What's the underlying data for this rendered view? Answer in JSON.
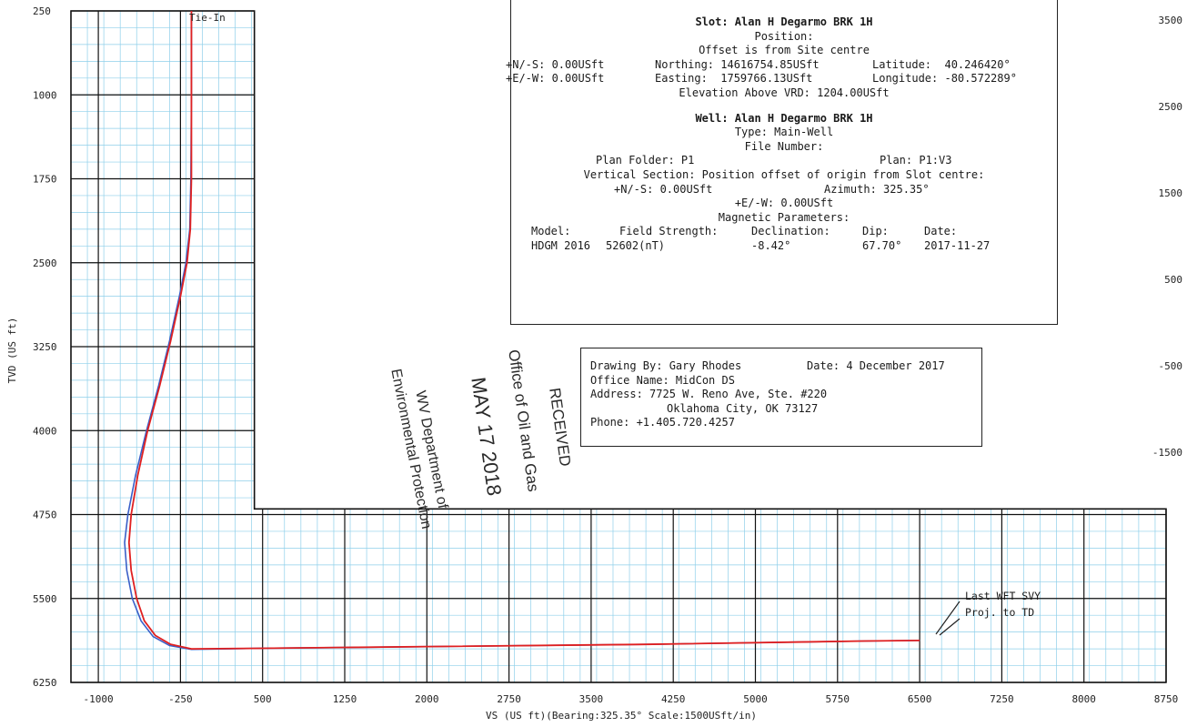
{
  "chart_data": {
    "type": "line",
    "xlabel": "VS (US ft)(Bearing:325.35° Scale:1500USft/in)",
    "ylabel": "TVD (US ft)",
    "xlim": [
      -1250,
      8750
    ],
    "ylim": [
      250,
      6250
    ],
    "y_inverted": true,
    "grid": true,
    "x_ticks": [
      "-1000",
      "-250",
      "500",
      "1250",
      "2000",
      "2750",
      "3500",
      "4250",
      "5000",
      "5750",
      "6500",
      "7250",
      "8000",
      "8750"
    ],
    "y_ticks": [
      "250",
      "1000",
      "1750",
      "2500",
      "3250",
      "4000",
      "4750",
      "5500",
      "6250"
    ],
    "right_ticks": [
      {
        "label": "3500",
        "tvd": 330
      },
      {
        "label": "2500",
        "tvd": 1105
      },
      {
        "label": "1500",
        "tvd": 1875
      },
      {
        "label": "500",
        "tvd": 2650
      },
      {
        "label": "-500",
        "tvd": 3420
      },
      {
        "label": "-1500",
        "tvd": 4195
      }
    ],
    "series": [
      {
        "color": "#3a5fc8",
        "x": [
          -150,
          -150,
          -155,
          -165,
          -200,
          -260,
          -350,
          -450,
          -560,
          -660,
          -730,
          -760,
          -740,
          -690,
          -610,
          -500,
          -350,
          -150,
          500,
          2000,
          4000,
          6000,
          6500
        ],
        "y": [
          250,
          1000,
          1750,
          2200,
          2500,
          2800,
          3200,
          3600,
          4000,
          4400,
          4750,
          5000,
          5250,
          5500,
          5700,
          5840,
          5920,
          5955,
          5945,
          5930,
          5910,
          5880,
          5875
        ]
      },
      {
        "color": "#e02020",
        "x": [
          -150,
          -150,
          -150,
          -160,
          -190,
          -250,
          -340,
          -440,
          -550,
          -640,
          -700,
          -720,
          -700,
          -650,
          -580,
          -480,
          -340,
          -150,
          500,
          2000,
          4000,
          6000,
          6500
        ],
        "y": [
          250,
          1000,
          1750,
          2200,
          2500,
          2800,
          3200,
          3600,
          4000,
          4400,
          4750,
          5000,
          5250,
          5500,
          5700,
          5830,
          5910,
          5950,
          5945,
          5930,
          5910,
          5880,
          5875
        ]
      }
    ],
    "annotations": [
      "Tie-In",
      "Last WFT SVY",
      "Proj. to TD"
    ]
  },
  "info": {
    "slot_title": "Slot: Alan H Degarmo BRK 1H",
    "position": "Position:",
    "offset_note": "Offset is from Site centre",
    "ns_col": "+N/-S: 0.00USft",
    "northing": "Northing: 14616754.85USft",
    "latitude": "Latitude:  40.246420°",
    "ew_col": "+E/-W: 0.00USft",
    "easting": "Easting:  1759766.13USft",
    "longitude": "Longitude: -80.572289°",
    "elevation": "Elevation Above VRD: 1204.00USft",
    "well_title": "Well: Alan H Degarmo BRK 1H",
    "type": "Type: Main-Well",
    "file_number": "File Number:",
    "plan_folder": "Plan Folder: P1",
    "plan": "Plan: P1:V3",
    "vs_line": "Vertical Section: Position offset of origin from Slot centre:",
    "vs_ns": "+N/-S: 0.00USft",
    "azimuth": "Azimuth: 325.35°",
    "vs_ew": "+E/-W: 0.00USft",
    "magnetic": "Magnetic Parameters:",
    "mag_headers": [
      "Model:",
      "Field Strength:",
      "Declination:",
      "Dip:",
      "Date:"
    ],
    "mag_values": [
      "HDGM 2016",
      "52602(nT)",
      "-8.42°",
      "67.70°",
      "2017-11-27"
    ]
  },
  "drawing": {
    "drawing_by": "Drawing By: Gary Rhodes",
    "date": "Date: 4 December 2017",
    "office": "Office Name: MidCon DS",
    "address1": "Address: 7725 W. Reno Ave, Ste. #220",
    "address2": "Oklahoma City, OK 73127",
    "phone": "Phone: +1.405.720.4257"
  },
  "stamp": {
    "received": "RECEIVED",
    "office": "Office of Oil and Gas",
    "date": "MAY 17 2018",
    "dept": "WV Department of",
    "env": "Environmental Protection"
  }
}
